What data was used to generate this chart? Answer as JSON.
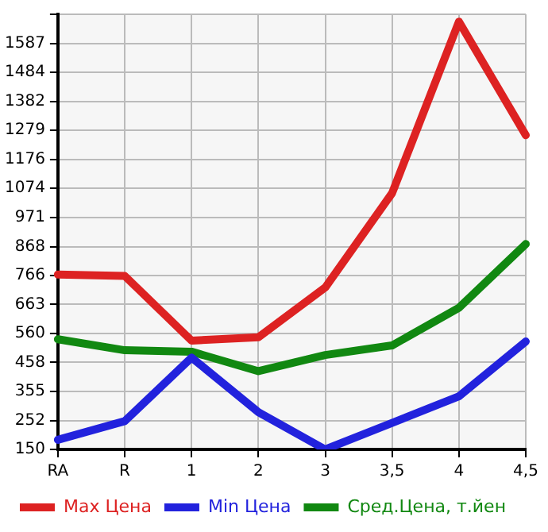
{
  "chart_data": {
    "type": "line",
    "categories": [
      "RA",
      "R",
      "1",
      "2",
      "3",
      "3,5",
      "4",
      "4,5"
    ],
    "series": [
      {
        "name": "Max Цена",
        "color": "#dd2222",
        "values": [
          769,
          764,
          535,
          547,
          723,
          1057,
          1664,
          1262
        ]
      },
      {
        "name": "Min Цена",
        "color": "#2222dd",
        "values": [
          184,
          250,
          475,
          282,
          150,
          244,
          338,
          532
        ]
      },
      {
        "name": "Сред.Цена, т.йен",
        "color": "#118811",
        "values": [
          540,
          501,
          496,
          427,
          484,
          518,
          651,
          877
        ]
      }
    ],
    "ylim": [
      150,
      1690
    ],
    "yticks": [
      150,
      252,
      355,
      458,
      560,
      663,
      766,
      868,
      971,
      1074,
      1176,
      1279,
      1382,
      1484,
      1587,
      {
        "value": 1690,
        "label": null
      }
    ],
    "grid": true,
    "legend": "bottom",
    "marker": "none",
    "line_style": "solid"
  }
}
